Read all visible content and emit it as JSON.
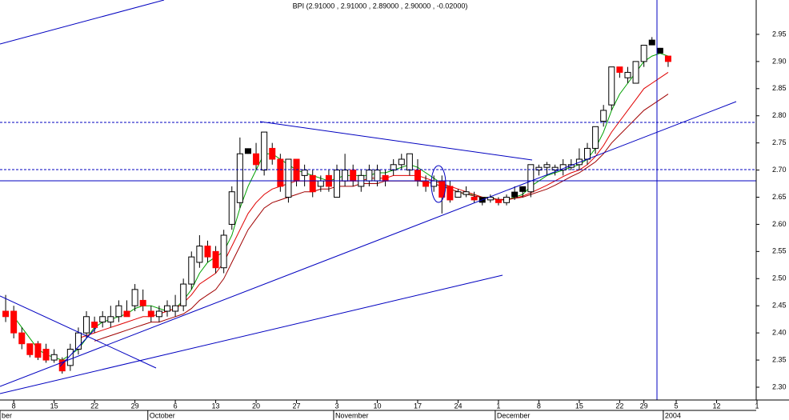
{
  "chart_data": {
    "type": "candlestick",
    "title": "BPI (2.91000 , 2.91000 , 2.89000 , 2.90000 , -0.02000)",
    "x": [
      -1,
      0,
      1,
      2,
      3,
      4,
      5,
      6,
      7,
      8,
      9,
      10,
      11,
      12,
      13,
      14,
      15,
      16,
      17,
      18,
      19,
      20,
      21,
      22,
      23,
      24,
      25,
      26,
      27,
      28,
      29,
      30,
      31,
      32,
      33,
      34,
      35,
      36,
      37,
      38,
      39,
      40,
      41,
      42,
      43,
      44,
      45,
      46,
      47,
      48,
      49,
      50,
      51,
      52,
      53,
      54,
      55,
      56,
      57,
      58,
      59,
      60,
      61,
      62,
      63,
      64,
      65,
      66,
      67,
      68,
      69,
      70,
      71,
      72,
      73,
      74,
      75,
      76,
      77,
      78,
      79,
      80,
      81
    ],
    "open": [
      2.44,
      2.44,
      2.4,
      2.38,
      2.38,
      2.37,
      2.35,
      2.35,
      2.34,
      2.37,
      2.4,
      2.42,
      2.42,
      2.42,
      2.43,
      2.44,
      2.45,
      2.46,
      2.44,
      2.43,
      2.44,
      2.44,
      2.45,
      2.49,
      2.53,
      2.56,
      2.55,
      2.52,
      2.6,
      2.64,
      2.735,
      2.73,
      2.7,
      2.74,
      2.72,
      2.65,
      2.72,
      2.69,
      2.69,
      2.67,
      2.69,
      2.65,
      2.68,
      2.7,
      2.67,
      2.68,
      2.68,
      2.69,
      2.7,
      2.71,
      2.7,
      2.7,
      2.68,
      2.67,
      2.68,
      2.67,
      2.65,
      2.655,
      2.65,
      2.645,
      2.645,
      2.645,
      2.64,
      2.655,
      2.665,
      2.66,
      2.7,
      2.705,
      2.7,
      2.7,
      2.705,
      2.71,
      2.72,
      2.74,
      2.79,
      2.82,
      2.89,
      2.87,
      2.86,
      2.9,
      2.935,
      2.92,
      2.91
    ],
    "high": [
      2.47,
      2.45,
      2.41,
      2.38,
      2.385,
      2.38,
      2.37,
      2.355,
      2.38,
      2.41,
      2.44,
      2.43,
      2.44,
      2.45,
      2.46,
      2.46,
      2.49,
      2.48,
      2.45,
      2.45,
      2.46,
      2.47,
      2.5,
      2.55,
      2.58,
      2.57,
      2.56,
      2.59,
      2.67,
      2.76,
      2.74,
      2.75,
      2.77,
      2.75,
      2.73,
      2.72,
      2.72,
      2.71,
      2.7,
      2.69,
      2.7,
      2.71,
      2.73,
      2.71,
      2.7,
      2.71,
      2.71,
      2.7,
      2.72,
      2.73,
      2.73,
      2.72,
      2.69,
      2.69,
      2.69,
      2.68,
      2.665,
      2.67,
      2.66,
      2.65,
      2.655,
      2.65,
      2.655,
      2.67,
      2.67,
      2.71,
      2.71,
      2.715,
      2.71,
      2.72,
      2.72,
      2.74,
      2.75,
      2.78,
      2.82,
      2.89,
      2.89,
      2.89,
      2.9,
      2.93,
      2.945,
      2.925,
      2.91
    ],
    "low": [
      2.42,
      2.39,
      2.37,
      2.355,
      2.35,
      2.345,
      2.345,
      2.325,
      2.33,
      2.36,
      2.39,
      2.4,
      2.41,
      2.41,
      2.42,
      2.43,
      2.44,
      2.44,
      2.42,
      2.42,
      2.43,
      2.43,
      2.44,
      2.48,
      2.52,
      2.53,
      2.51,
      2.51,
      2.59,
      2.63,
      2.73,
      2.7,
      2.69,
      2.71,
      2.66,
      2.64,
      2.67,
      2.67,
      2.65,
      2.66,
      2.66,
      2.65,
      2.67,
      2.67,
      2.66,
      2.67,
      2.67,
      2.67,
      2.69,
      2.7,
      2.69,
      2.67,
      2.66,
      2.66,
      2.62,
      2.64,
      2.65,
      2.65,
      2.64,
      2.635,
      2.64,
      2.635,
      2.635,
      2.645,
      2.65,
      2.65,
      2.69,
      2.69,
      2.69,
      2.69,
      2.7,
      2.7,
      2.71,
      2.73,
      2.78,
      2.81,
      2.87,
      2.86,
      2.86,
      2.89,
      2.93,
      2.915,
      2.89
    ],
    "close": [
      2.43,
      2.4,
      2.38,
      2.36,
      2.355,
      2.35,
      2.36,
      2.33,
      2.37,
      2.4,
      2.43,
      2.41,
      2.43,
      2.43,
      2.45,
      2.43,
      2.48,
      2.45,
      2.43,
      2.44,
      2.45,
      2.45,
      2.49,
      2.54,
      2.56,
      2.54,
      2.52,
      2.58,
      2.66,
      2.73,
      2.735,
      2.71,
      2.77,
      2.72,
      2.67,
      2.72,
      2.68,
      2.7,
      2.66,
      2.68,
      2.67,
      2.7,
      2.7,
      2.68,
      2.69,
      2.7,
      2.7,
      2.68,
      2.71,
      2.72,
      2.73,
      2.68,
      2.67,
      2.68,
      2.65,
      2.645,
      2.66,
      2.66,
      2.645,
      2.645,
      2.65,
      2.64,
      2.65,
      2.655,
      2.665,
      2.71,
      2.705,
      2.71,
      2.705,
      2.71,
      2.71,
      2.72,
      2.74,
      2.78,
      2.81,
      2.89,
      2.88,
      2.88,
      2.9,
      2.93,
      2.935,
      2.92,
      2.9
    ],
    "colors": {
      "up": "#ffffff",
      "down": "#ff0000",
      "unchanged": "#000000"
    },
    "series": [
      {
        "color": "#00a000",
        "values": [
          null,
          2.43,
          2.41,
          2.39,
          2.37,
          2.36,
          2.355,
          2.35,
          2.36,
          2.37,
          2.39,
          2.41,
          2.42,
          2.425,
          2.43,
          2.435,
          2.445,
          2.45,
          2.45,
          2.445,
          2.44,
          2.445,
          2.46,
          2.48,
          2.51,
          2.53,
          2.54,
          2.55,
          2.58,
          2.63,
          2.67,
          2.7,
          2.73,
          2.73,
          2.72,
          2.71,
          2.7,
          2.695,
          2.69,
          2.685,
          2.68,
          2.685,
          2.69,
          2.69,
          2.69,
          2.69,
          2.695,
          2.695,
          2.7,
          2.705,
          2.71,
          2.705,
          2.695,
          2.685,
          2.675,
          2.665,
          2.66,
          2.655,
          2.655,
          2.65,
          2.65,
          2.645,
          2.645,
          2.65,
          2.655,
          2.67,
          2.68,
          2.69,
          2.695,
          2.7,
          2.705,
          2.71,
          2.72,
          2.74,
          2.77,
          2.81,
          2.84,
          2.86,
          2.88,
          2.9,
          2.91,
          2.915,
          2.91
        ]
      },
      {
        "color": "#e00000",
        "values": [
          null,
          null,
          null,
          null,
          null,
          null,
          null,
          null,
          null,
          2.39,
          2.395,
          2.4,
          2.405,
          2.41,
          2.415,
          2.42,
          2.425,
          2.43,
          2.43,
          2.435,
          2.44,
          2.445,
          2.455,
          2.47,
          2.49,
          2.5,
          2.51,
          2.53,
          2.56,
          2.59,
          2.62,
          2.64,
          2.655,
          2.665,
          2.67,
          2.675,
          2.68,
          2.68,
          2.68,
          2.68,
          2.68,
          2.68,
          2.68,
          2.68,
          2.68,
          2.685,
          2.685,
          2.685,
          2.69,
          2.69,
          2.69,
          2.69,
          2.685,
          2.68,
          2.675,
          2.67,
          2.665,
          2.66,
          2.655,
          2.65,
          2.648,
          2.645,
          2.645,
          2.648,
          2.652,
          2.658,
          2.665,
          2.672,
          2.68,
          2.688,
          2.695,
          2.7,
          2.71,
          2.725,
          2.745,
          2.77,
          2.79,
          2.81,
          2.83,
          2.85,
          2.86,
          2.87,
          2.88
        ]
      },
      {
        "color": "#a00000",
        "values": [
          null,
          null,
          null,
          null,
          null,
          null,
          null,
          null,
          null,
          null,
          null,
          2.385,
          2.39,
          2.395,
          2.4,
          2.405,
          2.41,
          2.415,
          2.42,
          2.42,
          2.425,
          2.43,
          2.435,
          2.445,
          2.46,
          2.47,
          2.48,
          2.5,
          2.53,
          2.56,
          2.59,
          2.61,
          2.63,
          2.64,
          2.645,
          2.65,
          2.655,
          2.66,
          2.66,
          2.665,
          2.665,
          2.67,
          2.67,
          2.67,
          2.675,
          2.675,
          2.675,
          2.68,
          2.68,
          2.68,
          2.68,
          2.68,
          2.678,
          2.675,
          2.67,
          2.665,
          2.66,
          2.656,
          2.652,
          2.65,
          2.648,
          2.646,
          2.646,
          2.648,
          2.65,
          2.655,
          2.66,
          2.665,
          2.672,
          2.68,
          2.688,
          2.695,
          2.705,
          2.715,
          2.73,
          2.75,
          2.765,
          2.78,
          2.795,
          2.81,
          2.82,
          2.83,
          2.84
        ]
      }
    ],
    "xlim": [
      -1.7,
      91.9
    ],
    "ylim": [
      2.2764,
      3.0133
    ],
    "xticks": [
      {
        "value": 0,
        "label": "8"
      },
      {
        "value": 5,
        "label": "15"
      },
      {
        "value": 10,
        "label": "22"
      },
      {
        "value": 15,
        "label": "29"
      },
      {
        "value": 20,
        "label": "6"
      },
      {
        "value": 25,
        "label": "13"
      },
      {
        "value": 30,
        "label": "20"
      },
      {
        "value": 35,
        "label": "27"
      },
      {
        "value": 40,
        "label": "3"
      },
      {
        "value": 45,
        "label": "10"
      },
      {
        "value": 50,
        "label": "17"
      },
      {
        "value": 55,
        "label": "24"
      },
      {
        "value": 60,
        "label": "1"
      },
      {
        "value": 65,
        "label": "8"
      },
      {
        "value": 70,
        "label": "15"
      },
      {
        "value": 75,
        "label": "22"
      },
      {
        "value": 78,
        "label": "29"
      },
      {
        "value": 82,
        "label": "5"
      },
      {
        "value": 87,
        "label": "12"
      },
      {
        "value": 92,
        "label": "1"
      }
    ],
    "month_ticks": [
      {
        "value": -1.7,
        "label": "ber"
      },
      {
        "value": 16.6,
        "label": "October"
      },
      {
        "value": 39.6,
        "label": "November"
      },
      {
        "value": 59.6,
        "label": "December"
      },
      {
        "value": 80.4,
        "label": "2004"
      }
    ],
    "yticks": [
      {
        "value": 2.3,
        "label": "2.30"
      },
      {
        "value": 2.35,
        "label": "2.35"
      },
      {
        "value": 2.4,
        "label": "2.40"
      },
      {
        "value": 2.45,
        "label": "2.45"
      },
      {
        "value": 2.5,
        "label": "2.50"
      },
      {
        "value": 2.55,
        "label": "2.55"
      },
      {
        "value": 2.6,
        "label": "2.60"
      },
      {
        "value": 2.65,
        "label": "2.65"
      },
      {
        "value": 2.7,
        "label": "2.70"
      },
      {
        "value": 2.75,
        "label": "2.75"
      },
      {
        "value": 2.8,
        "label": "2.80"
      },
      {
        "value": 2.85,
        "label": "2.85"
      },
      {
        "value": 2.9,
        "label": "2.90"
      },
      {
        "value": 2.95,
        "label": "2.95"
      }
    ]
  }
}
